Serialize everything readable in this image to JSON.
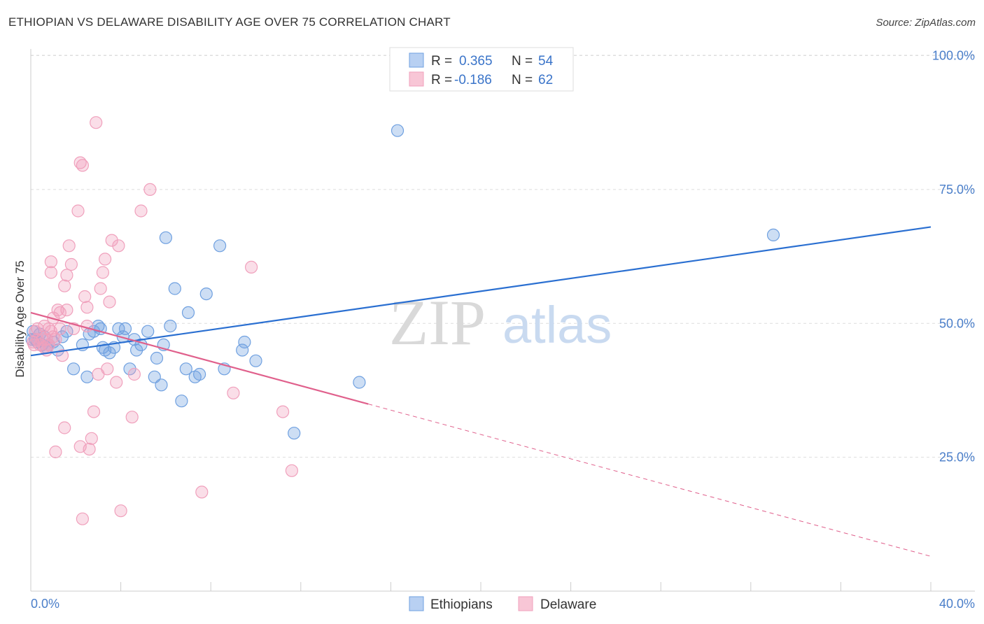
{
  "title": "ETHIOPIAN VS DELAWARE DISABILITY AGE OVER 75 CORRELATION CHART",
  "source": "Source: ZipAtlas.com",
  "watermark": {
    "zip": "ZIP",
    "atlas": "atlas"
  },
  "chart_data": {
    "type": "scatter",
    "title": "ETHIOPIAN VS DELAWARE DISABILITY AGE OVER 75 CORRELATION CHART",
    "xlabel": "",
    "ylabel": "Disability Age Over 75",
    "xlim": [
      0,
      40
    ],
    "ylim": [
      0,
      105
    ],
    "x_tick_labels": {
      "min": "0.0%",
      "max": "40.0%"
    },
    "y_ticks": [
      {
        "value": 25,
        "label": "25.0%"
      },
      {
        "value": 50,
        "label": "50.0%"
      },
      {
        "value": 75,
        "label": "75.0%"
      },
      {
        "value": 100,
        "label": "100.0%"
      }
    ],
    "legend": {
      "position": "top-center",
      "rows": [
        {
          "r_label": "R =",
          "r_value": "0.365",
          "n_label": "N =",
          "n_value": "54"
        },
        {
          "r_label": "R =",
          "r_value": "-0.186",
          "n_label": "N =",
          "n_value": "62"
        }
      ]
    },
    "series": [
      {
        "name": "Ethiopians",
        "color": "#6fa0e0",
        "line_color": "#2a6fd1",
        "trend": {
          "x_start": 0,
          "y_start": 44.0,
          "x_end": 40,
          "y_end": 68.0,
          "dashed_from_x": null
        },
        "points": [
          [
            0.1,
            48.5
          ],
          [
            0.2,
            47.0
          ],
          [
            0.3,
            46.5
          ],
          [
            0.4,
            48.0
          ],
          [
            0.5,
            46.0
          ],
          [
            0.6,
            47.5
          ],
          [
            0.7,
            45.5
          ],
          [
            0.8,
            46.0
          ],
          [
            1.0,
            46.5
          ],
          [
            1.2,
            45.0
          ],
          [
            1.4,
            47.5
          ],
          [
            1.6,
            48.5
          ],
          [
            1.9,
            41.5
          ],
          [
            2.3,
            46.0
          ],
          [
            2.5,
            40.0
          ],
          [
            2.6,
            48.0
          ],
          [
            2.8,
            48.5
          ],
          [
            3.0,
            49.5
          ],
          [
            3.1,
            49.0
          ],
          [
            3.2,
            45.5
          ],
          [
            3.3,
            45.0
          ],
          [
            3.5,
            44.5
          ],
          [
            3.7,
            45.5
          ],
          [
            3.9,
            49.0
          ],
          [
            4.1,
            47.5
          ],
          [
            4.2,
            49.0
          ],
          [
            4.4,
            41.5
          ],
          [
            4.6,
            47.0
          ],
          [
            4.7,
            45.0
          ],
          [
            4.9,
            46.0
          ],
          [
            5.2,
            48.5
          ],
          [
            5.5,
            40.0
          ],
          [
            5.6,
            43.5
          ],
          [
            5.8,
            38.5
          ],
          [
            5.9,
            46.0
          ],
          [
            6.0,
            66.0
          ],
          [
            6.2,
            49.5
          ],
          [
            6.4,
            56.5
          ],
          [
            6.7,
            35.5
          ],
          [
            6.9,
            41.5
          ],
          [
            7.0,
            52.0
          ],
          [
            7.3,
            40.0
          ],
          [
            7.5,
            40.5
          ],
          [
            7.8,
            55.5
          ],
          [
            8.4,
            64.5
          ],
          [
            8.6,
            41.5
          ],
          [
            9.4,
            45.0
          ],
          [
            9.5,
            46.5
          ],
          [
            10.0,
            43.0
          ],
          [
            11.7,
            29.5
          ],
          [
            14.6,
            39.0
          ],
          [
            16.3,
            86.0
          ],
          [
            33.0,
            66.5
          ],
          [
            0.05,
            47.0
          ]
        ]
      },
      {
        "name": "Delaware",
        "color": "#f0a0bc",
        "line_color": "#e0608c",
        "trend": {
          "x_start": 0,
          "y_start": 52.0,
          "x_end": 40,
          "y_end": 6.5,
          "dashed_from_x": 15
        },
        "points": [
          [
            0.1,
            46.5
          ],
          [
            0.2,
            48.5
          ],
          [
            0.3,
            49.0
          ],
          [
            0.4,
            46.0
          ],
          [
            0.5,
            47.0
          ],
          [
            0.6,
            49.5
          ],
          [
            0.7,
            45.0
          ],
          [
            0.8,
            46.0
          ],
          [
            0.9,
            48.5
          ],
          [
            1.0,
            51.0
          ],
          [
            1.1,
            47.0
          ],
          [
            1.2,
            52.5
          ],
          [
            1.3,
            49.0
          ],
          [
            1.4,
            44.0
          ],
          [
            1.5,
            57.0
          ],
          [
            1.6,
            52.5
          ],
          [
            1.7,
            64.5
          ],
          [
            1.8,
            61.0
          ],
          [
            1.9,
            49.0
          ],
          [
            0.9,
            61.5
          ],
          [
            0.9,
            59.5
          ],
          [
            1.1,
            26.0
          ],
          [
            1.5,
            30.5
          ],
          [
            1.6,
            59.0
          ],
          [
            2.1,
            71.0
          ],
          [
            2.2,
            80.0
          ],
          [
            2.3,
            79.5
          ],
          [
            2.4,
            55.0
          ],
          [
            2.5,
            53.0
          ],
          [
            2.6,
            26.5
          ],
          [
            2.7,
            28.5
          ],
          [
            2.8,
            33.5
          ],
          [
            2.9,
            87.5
          ],
          [
            3.0,
            40.5
          ],
          [
            3.1,
            56.5
          ],
          [
            3.2,
            59.5
          ],
          [
            3.3,
            62.0
          ],
          [
            3.4,
            41.5
          ],
          [
            3.5,
            54.0
          ],
          [
            3.6,
            65.5
          ],
          [
            3.8,
            39.0
          ],
          [
            3.9,
            64.5
          ],
          [
            4.0,
            15.0
          ],
          [
            4.5,
            32.5
          ],
          [
            4.6,
            40.5
          ],
          [
            4.9,
            71.0
          ],
          [
            5.3,
            75.0
          ],
          [
            7.6,
            18.5
          ],
          [
            9.0,
            37.0
          ],
          [
            9.8,
            60.5
          ],
          [
            11.2,
            33.5
          ],
          [
            11.6,
            22.5
          ],
          [
            2.3,
            13.5
          ],
          [
            2.2,
            27.0
          ],
          [
            0.6,
            45.5
          ],
          [
            0.3,
            47.0
          ],
          [
            0.15,
            46.0
          ],
          [
            0.8,
            49.0
          ],
          [
            1.0,
            47.5
          ],
          [
            0.7,
            47.0
          ],
          [
            2.5,
            49.5
          ],
          [
            1.3,
            52.0
          ]
        ]
      }
    ]
  }
}
